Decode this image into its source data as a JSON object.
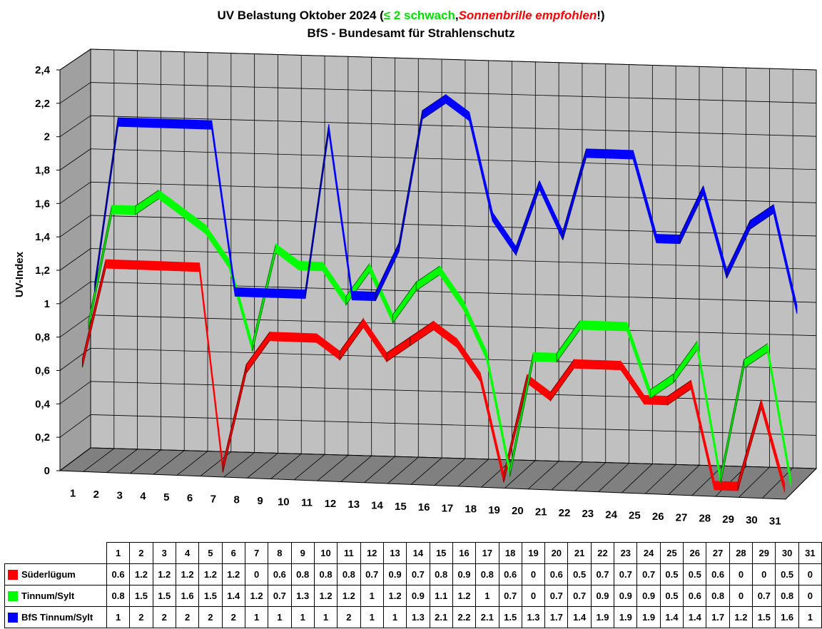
{
  "title": {
    "part1": "UV Belastung Oktober 2024 (",
    "part2": "≤ 2 schwach",
    "part3": ",",
    "part4": "Sonnenbrille empfohlen",
    "part5": "!)",
    "line2": "BfS - Bundesamt für Strahlenschutz"
  },
  "chart_data": {
    "type": "line",
    "ylabel": "UV-Index",
    "ylim": [
      0,
      2.4
    ],
    "yticks": [
      "0",
      "0,2",
      "0,4",
      "0,6",
      "0,8",
      "1",
      "1,2",
      "1,4",
      "1,6",
      "1,8",
      "2",
      "2,2",
      "2,4"
    ],
    "categories": [
      "1",
      "2",
      "3",
      "4",
      "5",
      "6",
      "7",
      "8",
      "9",
      "10",
      "11",
      "12",
      "13",
      "14",
      "15",
      "16",
      "17",
      "18",
      "19",
      "20",
      "21",
      "22",
      "23",
      "24",
      "25",
      "26",
      "27",
      "28",
      "29",
      "30",
      "31"
    ],
    "colors": [
      "#ff0000",
      "#00ff00",
      "#0000ff"
    ],
    "series": [
      {
        "name": "Süderlügum",
        "color": "#ff0000",
        "values": [
          0.6,
          1.2,
          1.2,
          1.2,
          1.2,
          1.2,
          0,
          0.6,
          0.8,
          0.8,
          0.8,
          0.7,
          0.9,
          0.7,
          0.8,
          0.9,
          0.8,
          0.6,
          0,
          0.6,
          0.5,
          0.7,
          0.7,
          0.7,
          0.5,
          0.5,
          0.6,
          0,
          0,
          0.5,
          0
        ]
      },
      {
        "name": "Tinnum/Sylt",
        "color": "#00ff00",
        "values": [
          0.8,
          1.5,
          1.5,
          1.6,
          1.5,
          1.4,
          1.2,
          0.7,
          1.3,
          1.2,
          1.2,
          1,
          1.2,
          0.9,
          1.1,
          1.2,
          1,
          0.7,
          0,
          0.7,
          0.7,
          0.9,
          0.9,
          0.9,
          0.5,
          0.6,
          0.8,
          0,
          0.7,
          0.8,
          0
        ]
      },
      {
        "name": "BfS Tinnum/Sylt",
        "color": "#0000ff",
        "values": [
          1,
          2,
          2,
          2,
          2,
          2,
          1,
          1,
          1,
          1,
          2,
          1,
          1,
          1.3,
          2.1,
          2.2,
          2.1,
          1.5,
          1.3,
          1.7,
          1.4,
          1.9,
          1.9,
          1.9,
          1.4,
          1.4,
          1.7,
          1.2,
          1.5,
          1.6,
          1
        ]
      }
    ],
    "table": {
      "header": [
        "1",
        "2",
        "3",
        "4",
        "5",
        "6",
        "7",
        "8",
        "9",
        "10",
        "11",
        "12",
        "13",
        "14",
        "15",
        "16",
        "17",
        "18",
        "19",
        "20",
        "21",
        "22",
        "23",
        "24",
        "25",
        "26",
        "27",
        "28",
        "29",
        "30",
        "31"
      ],
      "rows": [
        {
          "label": "Süderlügum",
          "color": "#ff0000",
          "cells": [
            "0.6",
            "1.2",
            "1.2",
            "1.2",
            "1.2",
            "1.2",
            "0",
            "0.6",
            "0.8",
            "0.8",
            "0.8",
            "0.7",
            "0.9",
            "0.7",
            "0.8",
            "0.9",
            "0.8",
            "0.6",
            "0",
            "0.6",
            "0.5",
            "0.7",
            "0.7",
            "0.7",
            "0.5",
            "0.5",
            "0.6",
            "0",
            "0",
            "0.5",
            "0"
          ]
        },
        {
          "label": "Tinnum/Sylt",
          "color": "#00ff00",
          "cells": [
            "0.8",
            "1.5",
            "1.5",
            "1.6",
            "1.5",
            "1.4",
            "1.2",
            "0.7",
            "1.3",
            "1.2",
            "1.2",
            "1",
            "1.2",
            "0.9",
            "1.1",
            "1.2",
            "1",
            "0.7",
            "0",
            "0.7",
            "0.7",
            "0.9",
            "0.9",
            "0.9",
            "0.5",
            "0.6",
            "0.8",
            "0",
            "0.7",
            "0.8",
            "0"
          ]
        },
        {
          "label": "BfS Tinnum/Sylt",
          "color": "#0000ff",
          "cells": [
            "1",
            "2",
            "2",
            "2",
            "2",
            "2",
            "1",
            "1",
            "1",
            "1",
            "2",
            "1",
            "1",
            "1.3",
            "2.1",
            "2.2",
            "2.1",
            "1.5",
            "1.3",
            "1.7",
            "1.4",
            "1.9",
            "1.9",
            "1.9",
            "1.4",
            "1.4",
            "1.7",
            "1.2",
            "1.5",
            "1.6",
            "1"
          ]
        }
      ]
    }
  }
}
